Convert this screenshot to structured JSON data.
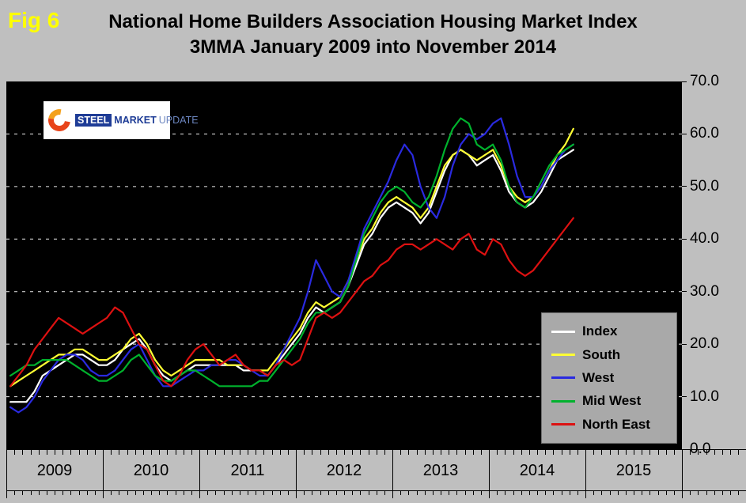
{
  "header": {
    "fig_label": "Fig 6",
    "title_line1": "National Home Builders Association Housing Market Index",
    "title_line2": "3MMA January 2009 into November 2014"
  },
  "logo": {
    "word1": "STEEL",
    "word2": "MARKET",
    "word3": "UPDATE"
  },
  "chart_data": {
    "type": "line",
    "title": "National Home Builders Association Housing Market Index",
    "subtitle": "3MMA January 2009 into November 2014",
    "x_start": "2009-01",
    "x_end": "2014-11",
    "x_axis_total_months": 84,
    "months_per_year": 12,
    "ylim": [
      0,
      70
    ],
    "y_ticks": [
      70,
      60,
      50,
      40,
      30,
      20,
      10,
      0
    ],
    "y_tick_labels": [
      "70.0",
      "60.0",
      "50.0",
      "40.0",
      "30.0",
      "20.0",
      "10.0",
      "0.0"
    ],
    "x_year_labels": [
      "2009",
      "2010",
      "2011",
      "2012",
      "2013",
      "2014",
      "2015"
    ],
    "grid": "horizontal-dashed-white",
    "plot_background": "#000000",
    "page_background": "#bfbfbf",
    "legend_position": "inside-bottom-right",
    "series": [
      {
        "name": "Index",
        "color": "#ffffff",
        "values": [
          9,
          9,
          9,
          11,
          14,
          15,
          16,
          17,
          18,
          18,
          17,
          16,
          16,
          17,
          19,
          20,
          21,
          19,
          16,
          14,
          13,
          14,
          15,
          16,
          16,
          16,
          16,
          16,
          16,
          15,
          15,
          15,
          14,
          16,
          18,
          20,
          22,
          25,
          27,
          26,
          27,
          28,
          31,
          35,
          39,
          41,
          44,
          46,
          47,
          46,
          45,
          43,
          45,
          49,
          53,
          56,
          57,
          56,
          54,
          55,
          56,
          53,
          49,
          47,
          46,
          47,
          49,
          52,
          55,
          56,
          57
        ]
      },
      {
        "name": "South",
        "color": "#ffff33",
        "values": [
          12,
          13,
          14,
          15,
          16,
          17,
          18,
          18,
          19,
          19,
          18,
          17,
          17,
          18,
          19,
          21,
          22,
          20,
          17,
          15,
          14,
          15,
          16,
          17,
          17,
          17,
          17,
          16,
          16,
          16,
          15,
          15,
          15,
          17,
          19,
          21,
          23,
          26,
          28,
          27,
          28,
          29,
          32,
          36,
          40,
          42,
          45,
          47,
          48,
          47,
          46,
          44,
          46,
          50,
          54,
          56,
          57,
          56,
          55,
          56,
          57,
          54,
          50,
          48,
          47,
          48,
          50,
          53,
          56,
          58,
          61
        ]
      },
      {
        "name": "West",
        "color": "#2a2ae0",
        "values": [
          8,
          7,
          8,
          10,
          13,
          15,
          17,
          18,
          18,
          17,
          15,
          14,
          14,
          15,
          17,
          19,
          20,
          17,
          14,
          12,
          12,
          13,
          14,
          15,
          15,
          16,
          16,
          17,
          17,
          16,
          15,
          14,
          14,
          16,
          19,
          22,
          25,
          30,
          36,
          33,
          30,
          29,
          32,
          37,
          42,
          45,
          48,
          51,
          55,
          58,
          56,
          50,
          46,
          44,
          48,
          54,
          58,
          60,
          59,
          60,
          62,
          63,
          58,
          52,
          48,
          48,
          50,
          53,
          55,
          57,
          58
        ]
      },
      {
        "name": "Mid West",
        "color": "#00b22d",
        "values": [
          14,
          15,
          16,
          16,
          17,
          17,
          17,
          17,
          16,
          15,
          14,
          13,
          13,
          14,
          15,
          17,
          18,
          16,
          14,
          13,
          13,
          14,
          15,
          15,
          14,
          13,
          12,
          12,
          12,
          12,
          12,
          13,
          13,
          15,
          17,
          19,
          21,
          24,
          26,
          26,
          27,
          28,
          31,
          36,
          41,
          44,
          47,
          49,
          50,
          49,
          47,
          46,
          48,
          52,
          57,
          61,
          63,
          62,
          58,
          57,
          58,
          55,
          50,
          47,
          46,
          48,
          51,
          54,
          56,
          57,
          58
        ]
      },
      {
        "name": "North East",
        "color": "#dd1111",
        "values": [
          12,
          14,
          16,
          19,
          21,
          23,
          25,
          24,
          23,
          22,
          23,
          24,
          25,
          27,
          26,
          23,
          20,
          19,
          16,
          13,
          12,
          14,
          17,
          19,
          20,
          18,
          16,
          17,
          18,
          16,
          15,
          15,
          14,
          16,
          17,
          16,
          17,
          21,
          25,
          26,
          25,
          26,
          28,
          30,
          32,
          33,
          35,
          36,
          38,
          39,
          39,
          38,
          39,
          40,
          39,
          38,
          40,
          41,
          38,
          37,
          40,
          39,
          36,
          34,
          33,
          34,
          36,
          38,
          40,
          42,
          44
        ]
      }
    ]
  }
}
